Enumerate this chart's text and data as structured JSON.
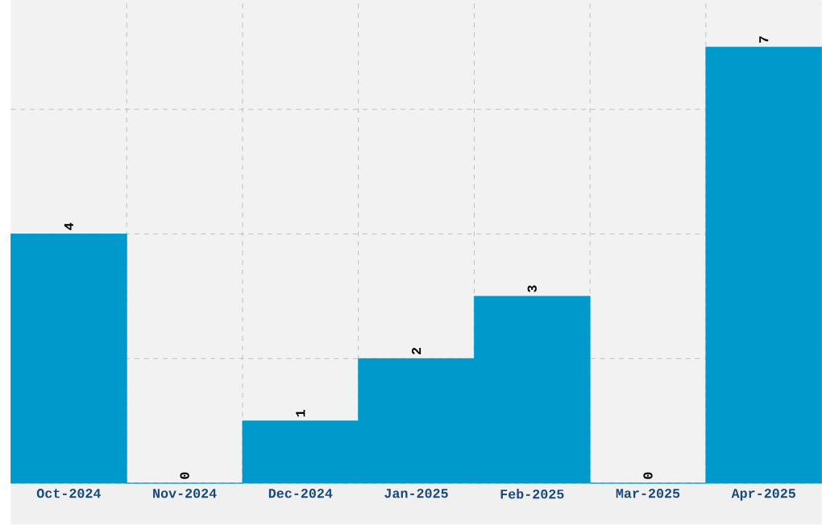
{
  "chart_data": {
    "type": "bar",
    "categories": [
      "Oct-2024",
      "Nov-2024",
      "Dec-2024",
      "Jan-2025",
      "Feb-2025",
      "Mar-2025",
      "Apr-2025"
    ],
    "values": [
      4,
      0,
      1,
      2,
      3,
      0,
      7
    ],
    "color": "#0099cc",
    "data_labels": true,
    "grid": true,
    "tick_labels": "x",
    "ylim": [
      0,
      7.75
    ],
    "yticks": [
      {
        "value": 0,
        "label": null
      },
      {
        "value": 2,
        "label": null
      },
      {
        "value": 4,
        "label": null
      },
      {
        "value": 6,
        "label": null
      }
    ]
  }
}
